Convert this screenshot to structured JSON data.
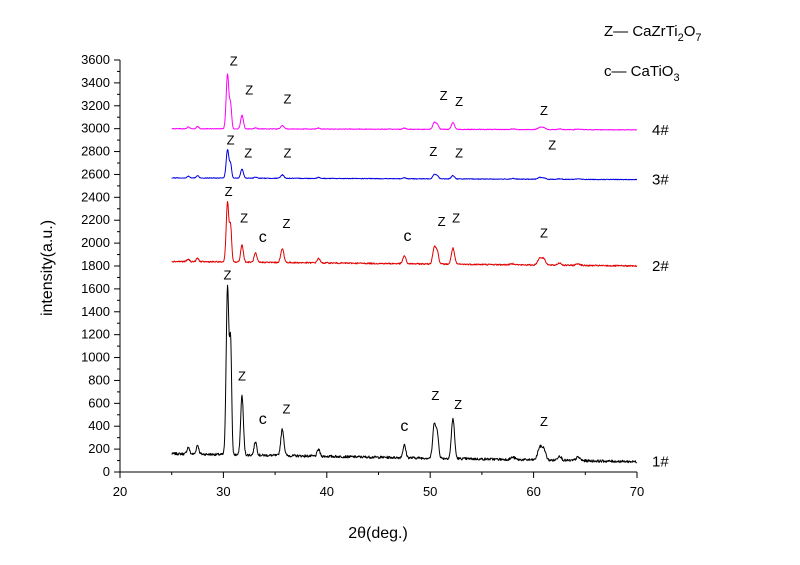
{
  "chart_data": {
    "type": "line",
    "title": "",
    "xlabel": "2θ(deg.)",
    "ylabel": "intensity(a.u.)",
    "xlim": [
      20,
      70
    ],
    "ylim": [
      0,
      3600
    ],
    "x_ticks": [
      20,
      30,
      40,
      50,
      60,
      70
    ],
    "y_ticks": [
      0,
      200,
      400,
      600,
      800,
      1000,
      1200,
      1400,
      1600,
      1800,
      2000,
      2200,
      2400,
      2600,
      2800,
      3000,
      3200,
      3400,
      3600
    ],
    "grid": false,
    "legend": {
      "placement": "top-right",
      "entries": [
        {
          "symbol": "Z",
          "label": "CaZrTi",
          "sub1": "2",
          "mid": "O",
          "sub2": "7"
        },
        {
          "symbol": "c",
          "label": "CaTiO",
          "sub1": "3",
          "mid": "",
          "sub2": ""
        }
      ]
    },
    "x_range": [
      25,
      70
    ],
    "peak_positions": [
      26.6,
      27.5,
      30.4,
      30.7,
      31.8,
      33.1,
      35.7,
      39.2,
      47.5,
      50.4,
      50.7,
      52.2,
      58.0,
      60.6,
      61.0,
      62.5,
      64.3
    ],
    "peak_widths": [
      0.12,
      0.12,
      0.13,
      0.1,
      0.13,
      0.13,
      0.15,
      0.13,
      0.14,
      0.15,
      0.13,
      0.15,
      0.2,
      0.2,
      0.18,
      0.18,
      0.2
    ],
    "series": [
      {
        "name": "1#",
        "color": "#000000",
        "baseline_start": 160,
        "baseline_end": 90,
        "noise": 22,
        "peaks": [
          60,
          80,
          1480,
          950,
          520,
          120,
          230,
          60,
          110,
          300,
          190,
          350,
          20,
          110,
          90,
          40,
          30
        ],
        "annotations": [
          {
            "x": 30.4,
            "y": 1680,
            "text": "Z"
          },
          {
            "x": 31.8,
            "y": 800,
            "text": "Z"
          },
          {
            "x": 33.8,
            "y": 420,
            "text": "c"
          },
          {
            "x": 36.1,
            "y": 510,
            "text": "Z"
          },
          {
            "x": 47.5,
            "y": 360,
            "text": "c"
          },
          {
            "x": 50.5,
            "y": 630,
            "text": "Z"
          },
          {
            "x": 52.7,
            "y": 550,
            "text": "Z"
          },
          {
            "x": 61.0,
            "y": 400,
            "text": "Z"
          }
        ]
      },
      {
        "name": "2#",
        "color": "#e00000",
        "baseline_start": 1840,
        "baseline_end": 1800,
        "noise": 12,
        "peaks": [
          20,
          30,
          520,
          300,
          150,
          80,
          120,
          40,
          70,
          150,
          100,
          140,
          10,
          60,
          50,
          20,
          15
        ],
        "annotations": [
          {
            "x": 30.5,
            "y": 2410,
            "text": "Z"
          },
          {
            "x": 32.0,
            "y": 2180,
            "text": "Z"
          },
          {
            "x": 33.8,
            "y": 2010,
            "text": "c"
          },
          {
            "x": 36.1,
            "y": 2130,
            "text": "Z"
          },
          {
            "x": 47.8,
            "y": 2020,
            "text": "c"
          },
          {
            "x": 51.1,
            "y": 2150,
            "text": "Z"
          },
          {
            "x": 52.5,
            "y": 2180,
            "text": "Z"
          },
          {
            "x": 61.0,
            "y": 2050,
            "text": "Z"
          }
        ]
      },
      {
        "name": "3#",
        "color": "#0000e0",
        "baseline_start": 2570,
        "baseline_end": 2555,
        "noise": 6,
        "peaks": [
          15,
          20,
          250,
          120,
          80,
          10,
          30,
          10,
          10,
          40,
          25,
          30,
          5,
          15,
          10,
          5,
          5
        ],
        "annotations": [
          {
            "x": 30.7,
            "y": 2860,
            "text": "Z"
          },
          {
            "x": 32.4,
            "y": 2750,
            "text": "Z"
          },
          {
            "x": 36.2,
            "y": 2750,
            "text": "Z"
          },
          {
            "x": 50.3,
            "y": 2760,
            "text": "Z"
          },
          {
            "x": 52.8,
            "y": 2750,
            "text": "Z"
          },
          {
            "x": 61.8,
            "y": 2820,
            "text": "Z"
          }
        ]
      },
      {
        "name": "4#",
        "color": "#ff00ff",
        "baseline_start": 3000,
        "baseline_end": 2990,
        "noise": 6,
        "peaks": [
          15,
          20,
          480,
          200,
          120,
          10,
          30,
          10,
          10,
          60,
          40,
          60,
          5,
          20,
          15,
          5,
          5
        ],
        "annotations": [
          {
            "x": 31.0,
            "y": 3550,
            "text": "Z"
          },
          {
            "x": 32.5,
            "y": 3300,
            "text": "Z"
          },
          {
            "x": 36.2,
            "y": 3220,
            "text": "Z"
          },
          {
            "x": 51.3,
            "y": 3250,
            "text": "Z"
          },
          {
            "x": 52.8,
            "y": 3200,
            "text": "Z"
          },
          {
            "x": 61.0,
            "y": 3120,
            "text": "Z"
          }
        ]
      }
    ]
  }
}
